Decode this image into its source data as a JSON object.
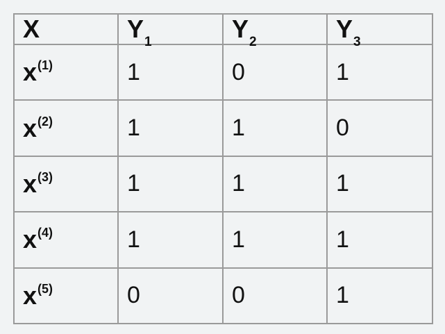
{
  "table": {
    "header": {
      "x_label": "X",
      "y_columns": [
        {
          "base": "Y",
          "sub": "1"
        },
        {
          "base": "Y",
          "sub": "2"
        },
        {
          "base": "Y",
          "sub": "3"
        }
      ]
    },
    "rows": [
      {
        "base": "x",
        "sup": "(1)",
        "values": [
          "1",
          "0",
          "1"
        ]
      },
      {
        "base": "x",
        "sup": "(2)",
        "values": [
          "1",
          "1",
          "0"
        ]
      },
      {
        "base": "x",
        "sup": "(3)",
        "values": [
          "1",
          "1",
          "1"
        ]
      },
      {
        "base": "x",
        "sup": "(4)",
        "values": [
          "1",
          "1",
          "1"
        ]
      },
      {
        "base": "x",
        "sup": "(5)",
        "values": [
          "0",
          "0",
          "1"
        ]
      }
    ]
  }
}
